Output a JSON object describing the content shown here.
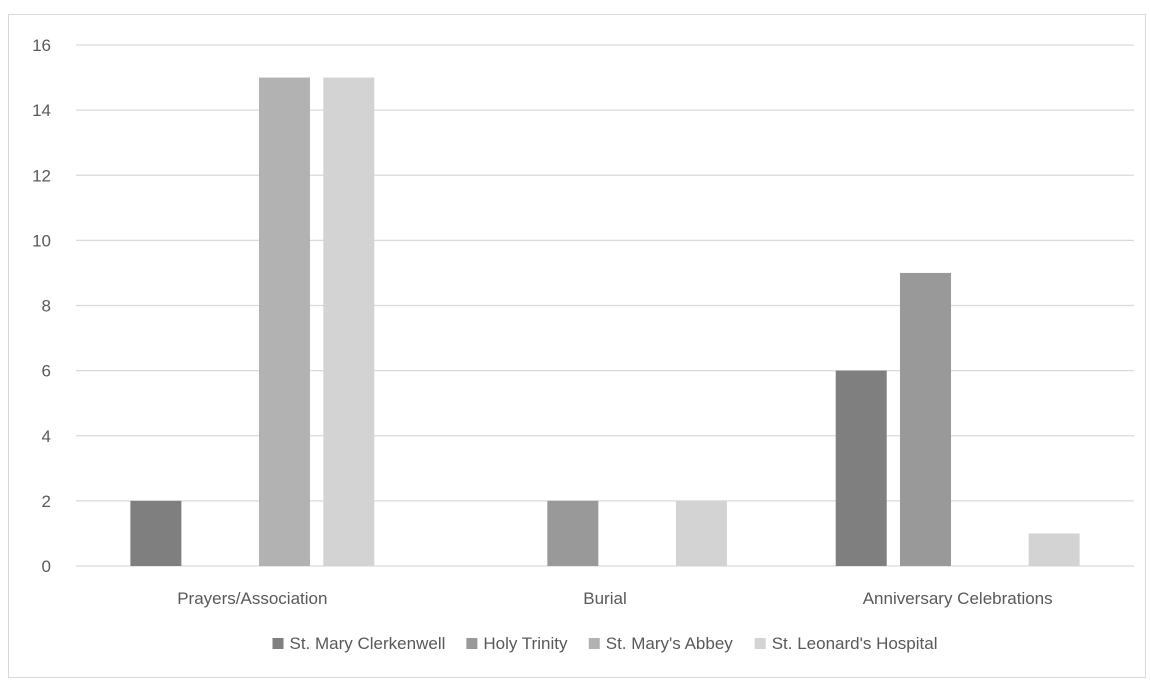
{
  "chart_data": {
    "type": "bar",
    "categories": [
      "Prayers/Association",
      "Burial",
      "Anniversary Celebrations"
    ],
    "series": [
      {
        "name": "St. Mary Clerkenwell",
        "color": "#7f7f7f",
        "values": [
          2,
          0,
          6
        ]
      },
      {
        "name": "Holy Trinity",
        "color": "#999999",
        "values": [
          0,
          2,
          9
        ]
      },
      {
        "name": "St. Mary's Abbey",
        "color": "#b2b2b2",
        "values": [
          15,
          0,
          0
        ]
      },
      {
        "name": "St. Leonard's Hospital",
        "color": "#d3d3d3",
        "values": [
          15,
          2,
          1
        ]
      }
    ],
    "ylim": [
      0,
      16
    ],
    "yticks": [
      0,
      2,
      4,
      6,
      8,
      10,
      12,
      14,
      16
    ],
    "grid": true,
    "legend_position": "bottom",
    "title": "",
    "xlabel": "",
    "ylabel": ""
  }
}
